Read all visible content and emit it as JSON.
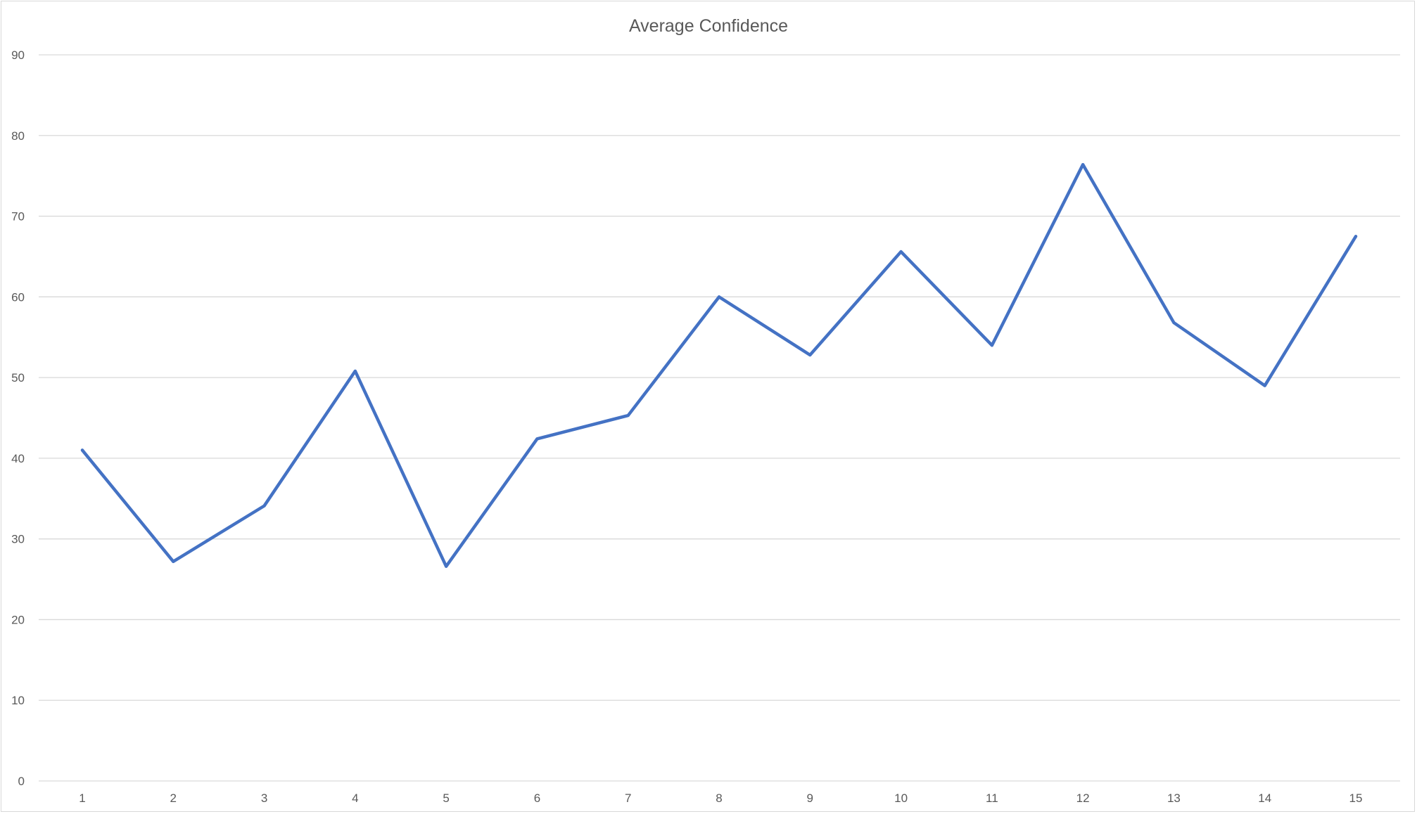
{
  "chart_data": {
    "type": "line",
    "title": "Average Confidence",
    "xlabel": "",
    "ylabel": "",
    "x": [
      1,
      2,
      3,
      4,
      5,
      6,
      7,
      8,
      9,
      10,
      11,
      12,
      13,
      14,
      15
    ],
    "x_tick_labels": [
      "1",
      "2",
      "3",
      "4",
      "5",
      "6",
      "7",
      "8",
      "9",
      "10",
      "11",
      "12",
      "13",
      "14",
      "15"
    ],
    "series": [
      {
        "values": [
          41.0,
          27.2,
          34.1,
          50.8,
          26.6,
          42.4,
          45.3,
          60.0,
          52.8,
          65.6,
          54.0,
          76.4,
          56.8,
          49.0,
          67.5
        ],
        "color": "#4472c4"
      }
    ],
    "ylim": [
      0,
      90
    ],
    "y_ticks": [
      0,
      10,
      20,
      30,
      40,
      50,
      60,
      70,
      80,
      90
    ],
    "y_tick_labels": [
      "0",
      "10",
      "20",
      "30",
      "40",
      "50",
      "60",
      "70",
      "80",
      "90"
    ],
    "grid": true,
    "legend": "none"
  }
}
